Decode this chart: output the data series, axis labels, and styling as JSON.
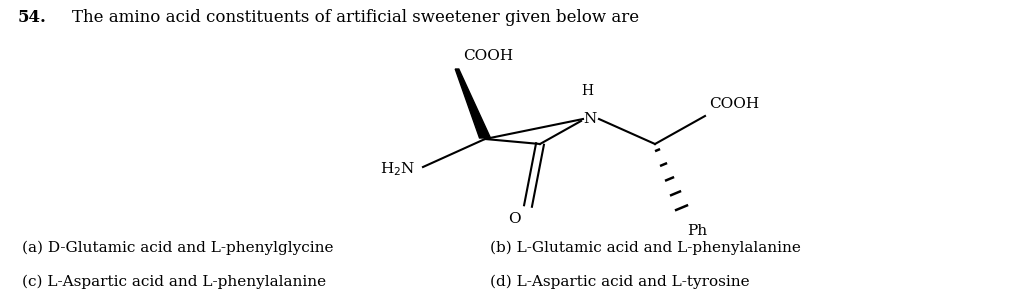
{
  "question_number": "54.",
  "question_text": "The amino acid constituents of artificial sweetener given below are",
  "options": [
    "(a) D-Glutamic acid and L-phenylglycine",
    "(c) L-Aspartic acid and L-phenylalanine",
    "(b) L-Glutamic acid and L-phenylalanine",
    "(d) L-Aspartic acid and L-tyrosine"
  ],
  "bg_color": "#ffffff",
  "text_color": "#000000",
  "fig_width": 10.25,
  "fig_height": 3.01,
  "dpi": 100
}
